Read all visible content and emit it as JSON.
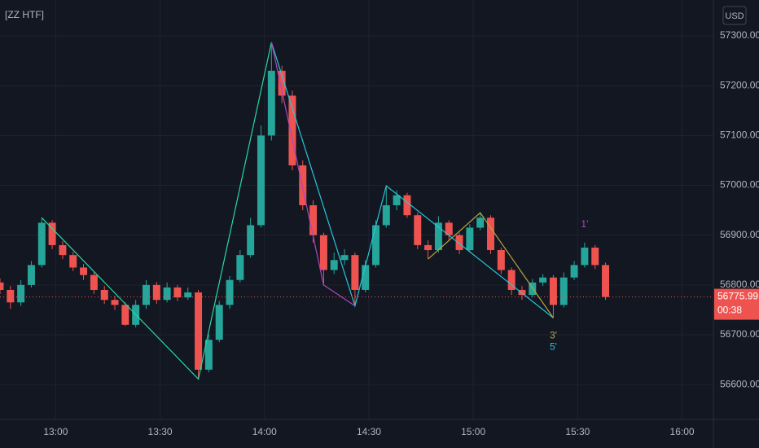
{
  "chart_data": {
    "type": "candlestick",
    "title": "[ZZ HTF]",
    "currency": "USD",
    "countdown": "00:38",
    "up_color": "#26a69a",
    "down_color": "#ef5350",
    "grid": true,
    "x": [
      "12:44",
      "12:47",
      "12:50",
      "12:53",
      "12:56",
      "12:59",
      "13:02",
      "13:05",
      "13:08",
      "13:11",
      "13:14",
      "13:17",
      "13:20",
      "13:23",
      "13:26",
      "13:29",
      "13:32",
      "13:35",
      "13:38",
      "13:41",
      "13:44",
      "13:47",
      "13:50",
      "13:53",
      "13:56",
      "13:59",
      "14:02",
      "14:05",
      "14:08",
      "14:11",
      "14:14",
      "14:17",
      "14:20",
      "14:23",
      "14:26",
      "14:29",
      "14:32",
      "14:35",
      "14:38",
      "14:41",
      "14:44",
      "14:47",
      "14:50",
      "14:53",
      "14:56",
      "14:59",
      "15:02",
      "15:05",
      "15:08",
      "15:11",
      "15:14",
      "15:17",
      "15:20",
      "15:23",
      "15:26",
      "15:29",
      "15:32",
      "15:35",
      "15:38"
    ],
    "open": [
      56805,
      56790,
      56765,
      56800,
      56840,
      56925,
      56880,
      56860,
      56835,
      56820,
      56790,
      56770,
      56760,
      56720,
      56760,
      56800,
      56770,
      56795,
      56775,
      56785,
      56630,
      56690,
      56760,
      56810,
      56860,
      56920,
      57100,
      57230,
      57180,
      57040,
      56960,
      56900,
      56830,
      56850,
      56860,
      56790,
      56840,
      56920,
      56960,
      56980,
      56940,
      56880,
      56870,
      56925,
      56900,
      56870,
      56915,
      56935,
      56870,
      56830,
      56790,
      56780,
      56805,
      56815,
      56760,
      56815,
      56840,
      56875,
      56840
    ],
    "high": [
      56813,
      56798,
      56810,
      56848,
      56935,
      56930,
      56888,
      56866,
      56842,
      56826,
      56798,
      56778,
      56765,
      56770,
      56810,
      56806,
      56805,
      56800,
      56795,
      56790,
      56700,
      56768,
      56818,
      56870,
      56935,
      57120,
      57287,
      57240,
      57190,
      57050,
      56970,
      56905,
      56865,
      56872,
      56865,
      56850,
      56930,
      56999,
      56990,
      56985,
      56945,
      56890,
      56938,
      56930,
      56905,
      56922,
      56945,
      56940,
      56875,
      56835,
      56798,
      56812,
      56822,
      56820,
      56825,
      56848,
      56885,
      56880,
      56845
    ],
    "low": [
      56782,
      56752,
      56758,
      56795,
      56835,
      56872,
      56852,
      56828,
      56810,
      56782,
      56762,
      56750,
      56718,
      56715,
      56752,
      56762,
      56765,
      56768,
      56770,
      56611,
      56625,
      56685,
      56752,
      56805,
      56855,
      56915,
      57090,
      57165,
      57030,
      56950,
      56885,
      56800,
      56822,
      56840,
      56758,
      56785,
      56835,
      56915,
      56950,
      56935,
      56872,
      56852,
      56865,
      56890,
      56862,
      56865,
      56910,
      56862,
      56822,
      56780,
      56770,
      56775,
      56798,
      56734,
      56755,
      56810,
      56835,
      56832,
      56770
    ],
    "close": [
      56790,
      56765,
      56800,
      56840,
      56925,
      56880,
      56860,
      56835,
      56820,
      56790,
      56770,
      56760,
      56720,
      56760,
      56800,
      56770,
      56795,
      56775,
      56785,
      56630,
      56690,
      56760,
      56810,
      56860,
      56920,
      57100,
      57230,
      57180,
      57040,
      56960,
      56900,
      56830,
      56850,
      56860,
      56790,
      56840,
      56920,
      56960,
      56980,
      56940,
      56880,
      56870,
      56925,
      56900,
      56870,
      56915,
      56935,
      56870,
      56830,
      56790,
      56780,
      56805,
      56815,
      56760,
      56815,
      56840,
      56875,
      56840,
      56775.99
    ],
    "lines": [
      {
        "color": "#26d9a0",
        "x": [
          "12:56",
          "13:41",
          "14:02"
        ],
        "values": [
          56935,
          56611,
          57287
        ]
      },
      {
        "color": "#26c6da",
        "x": [
          "14:02",
          "14:26",
          "14:35",
          "15:23"
        ],
        "values": [
          57287,
          56758,
          56999,
          56734
        ]
      },
      {
        "color": "#ab47bc",
        "x": [
          "14:02",
          "14:17",
          "14:26"
        ],
        "values": [
          57287,
          56800,
          56758
        ]
      },
      {
        "color": "#b5a642",
        "x": [
          "14:47",
          "15:02",
          "15:23"
        ],
        "values": [
          56852,
          56945,
          56734
        ]
      }
    ],
    "annotations": [
      {
        "text": "1'",
        "x": "15:32",
        "position": "above",
        "color": "#ab47bc"
      },
      {
        "text": "3'",
        "x": "15:23",
        "position": "below",
        "color": "#b5a642"
      },
      {
        "text": "5'",
        "x": "15:23",
        "position": "below2",
        "color": "#26c6da"
      }
    ],
    "xlim": [
      "12:44",
      "16:09"
    ],
    "xticks": [
      "13:00",
      "13:30",
      "14:00",
      "14:30",
      "15:00",
      "15:30",
      "16:00"
    ],
    "ylim": [
      56530,
      57372
    ],
    "yticks": [
      {
        "value": 56600,
        "label": "56600.00"
      },
      {
        "value": 56700,
        "label": "56700.00"
      },
      {
        "value": 56800,
        "label": "56800.00"
      },
      {
        "value": 56900,
        "label": "56900.00"
      },
      {
        "value": 57000,
        "label": "57000.00"
      },
      {
        "value": 57100,
        "label": "57100.00"
      },
      {
        "value": 57200,
        "label": "57200.00"
      },
      {
        "value": 57300,
        "label": "57300.00"
      }
    ]
  }
}
